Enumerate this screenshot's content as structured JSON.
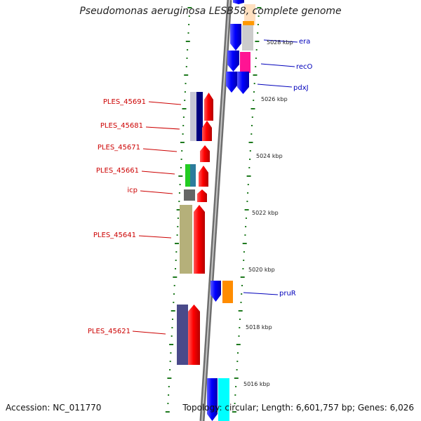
{
  "title": "Pseudomonas aeruginosa LESB58, complete genome",
  "footer": {
    "accession": "Accession: NC_011770",
    "topology": "Topology: circular; Length: 6,601,757 bp; Genes: 6,026"
  },
  "colors": {
    "forward_label": "#cc0000",
    "reverse_label": "#0000bb",
    "tick": "#1f7a1f",
    "backbone": "#8c8c8c"
  },
  "scale_labels": [
    "5028 kbp",
    "5026 kbp",
    "5024 kbp",
    "5022 kbp",
    "5020 kbp",
    "5018 kbp",
    "5016 kbp"
  ],
  "left_labels": [
    "PLES_45691",
    "PLES_45681",
    "PLES_45671",
    "PLES_45661",
    "icp",
    "PLES_45641",
    "PLES_45621"
  ],
  "right_labels": [
    "era",
    "recO",
    "pdxJ",
    "pruR"
  ]
}
